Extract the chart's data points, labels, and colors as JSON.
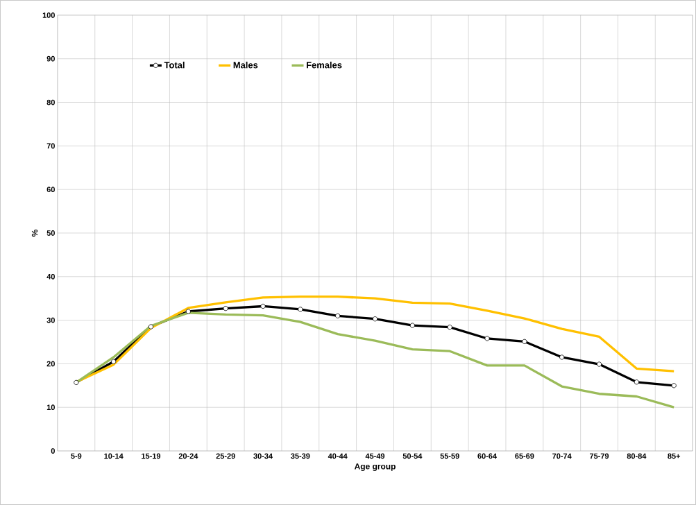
{
  "chart_data": {
    "type": "line",
    "xlabel": "Age group",
    "ylabel": "%",
    "categories": [
      "5-9",
      "10-14",
      "15-19",
      "20-24",
      "25-29",
      "30-34",
      "35-39",
      "40-44",
      "45-49",
      "50-54",
      "55-59",
      "60-64",
      "65-69",
      "70-74",
      "75-79",
      "80-84",
      "85+"
    ],
    "series": [
      {
        "name": "Total",
        "color": "#000000",
        "marker": "circle",
        "values": [
          15.7,
          20.5,
          28.5,
          32.0,
          32.7,
          33.2,
          32.5,
          31.0,
          30.3,
          28.8,
          28.4,
          25.8,
          25.1,
          21.5,
          19.9,
          15.8,
          15.0
        ]
      },
      {
        "name": "Males",
        "color": "#ffc000",
        "marker": "none",
        "values": [
          15.8,
          19.8,
          28.2,
          32.8,
          34.1,
          35.2,
          35.4,
          35.4,
          35.0,
          34.0,
          33.8,
          32.2,
          30.4,
          28.0,
          26.2,
          18.9,
          18.3
        ]
      },
      {
        "name": "Females",
        "color": "#9bbb59",
        "marker": "none",
        "values": [
          15.7,
          21.5,
          28.7,
          31.7,
          31.3,
          31.1,
          29.6,
          26.8,
          25.3,
          23.3,
          22.9,
          19.6,
          19.6,
          14.8,
          13.1,
          12.5,
          10.0
        ]
      }
    ],
    "ylim": [
      0,
      100
    ],
    "yticks": [
      0,
      10,
      20,
      30,
      40,
      50,
      60,
      70,
      80,
      90,
      100
    ],
    "grid": true,
    "legend": "top left",
    "line_style": "solid"
  }
}
